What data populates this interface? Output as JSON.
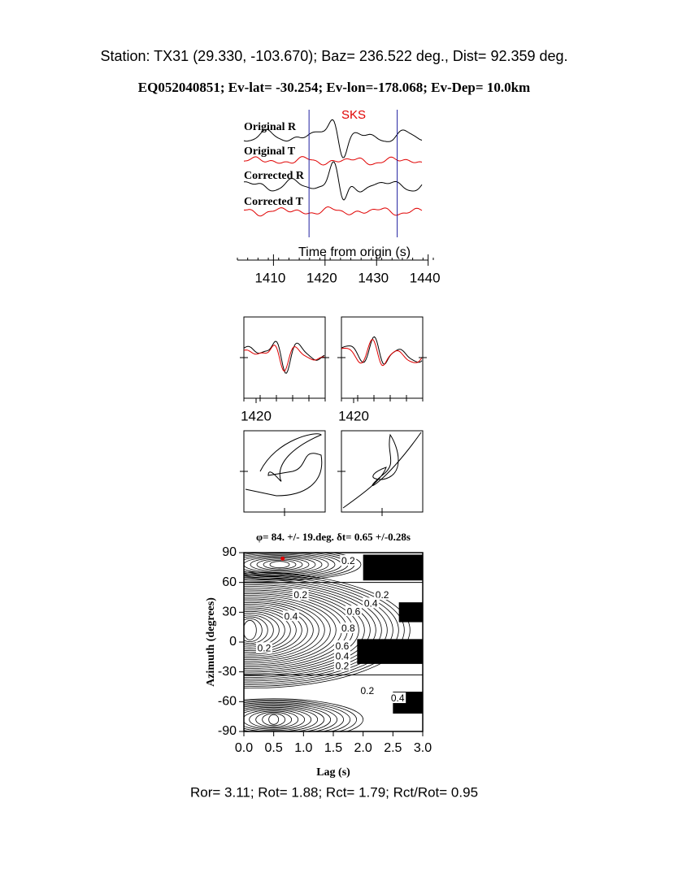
{
  "header": {
    "station": "Station: TX31 (29.330, -103.670); Baz=  236.522 deg., Dist=   92.359 deg.",
    "event": "EQ052040851; Ev-lat= -30.254; Ev-lon=-178.068; Ev-Dep= 10.0km"
  },
  "chart_data": [
    {
      "type": "waveform",
      "phase_label": "SKS",
      "trace_labels": [
        "Original R",
        "Original T",
        "Corrected R",
        "Corrected T"
      ],
      "x_label": "Time from origin (s)",
      "xlim": [
        1403,
        1441
      ],
      "xticks": [
        1410,
        1420,
        1430,
        1440
      ],
      "window": [
        1416.9,
        1434.0
      ],
      "colors": [
        "#000000",
        "#e00000",
        "#000000",
        "#e00000"
      ]
    },
    {
      "type": "overlay",
      "xlim": [
        1417,
        1437
      ],
      "xticks": [
        1420
      ]
    },
    {
      "type": "overlay",
      "xlim": [
        1417,
        1437
      ],
      "xticks": [
        1420
      ]
    },
    {
      "type": "particle"
    },
    {
      "type": "particle"
    },
    {
      "type": "contour",
      "title": "φ= 84. +/- 19.deg. δt= 0.65 +/-0.28s",
      "x_label": "Lag (s)",
      "y_label": "Azimuth (degrees)",
      "xlim": [
        0,
        3
      ],
      "xticks": [
        {
          "value": 0,
          "label": "0.0"
        },
        0.5,
        {
          "value": 1,
          "label": "1.0"
        },
        1.5,
        {
          "value": 2,
          "label": "2.0"
        },
        2.5,
        {
          "value": 3,
          "label": "3.0"
        }
      ],
      "ylim": [
        -90,
        90
      ],
      "yticks": [
        -90,
        -60,
        -30,
        0,
        30,
        60,
        90
      ],
      "best": {
        "x": 0.65,
        "y": 84,
        "color": "#e00000"
      },
      "contour_labels": [
        {
          "x": 1.75,
          "y": 81.8,
          "level": 0.2
        },
        {
          "x": 0.95,
          "y": 47.5,
          "level": 0.2
        },
        {
          "x": 2.32,
          "y": 47.5,
          "level": 0.2
        },
        {
          "x": 2.13,
          "y": 39,
          "level": 0.4
        },
        {
          "x": 1.84,
          "y": 31,
          "level": 0.6
        },
        {
          "x": 0.79,
          "y": 26,
          "level": 0.4
        },
        {
          "x": 1.75,
          "y": 14,
          "level": 0.8
        },
        {
          "x": 0.34,
          "y": -6,
          "level": 0.2
        },
        {
          "x": 1.65,
          "y": -4,
          "level": 0.6
        },
        {
          "x": 1.65,
          "y": -14,
          "level": 0.4
        },
        {
          "x": 1.65,
          "y": -24,
          "level": 0.2
        },
        {
          "x": 2.07,
          "y": -49,
          "level": 0.2
        },
        {
          "x": 2.58,
          "y": -56.5,
          "level": 0.4
        }
      ]
    }
  ],
  "footer": "Ror= 3.11; Rot= 1.88; Rct= 1.79; Rct/Rot= 0.95"
}
